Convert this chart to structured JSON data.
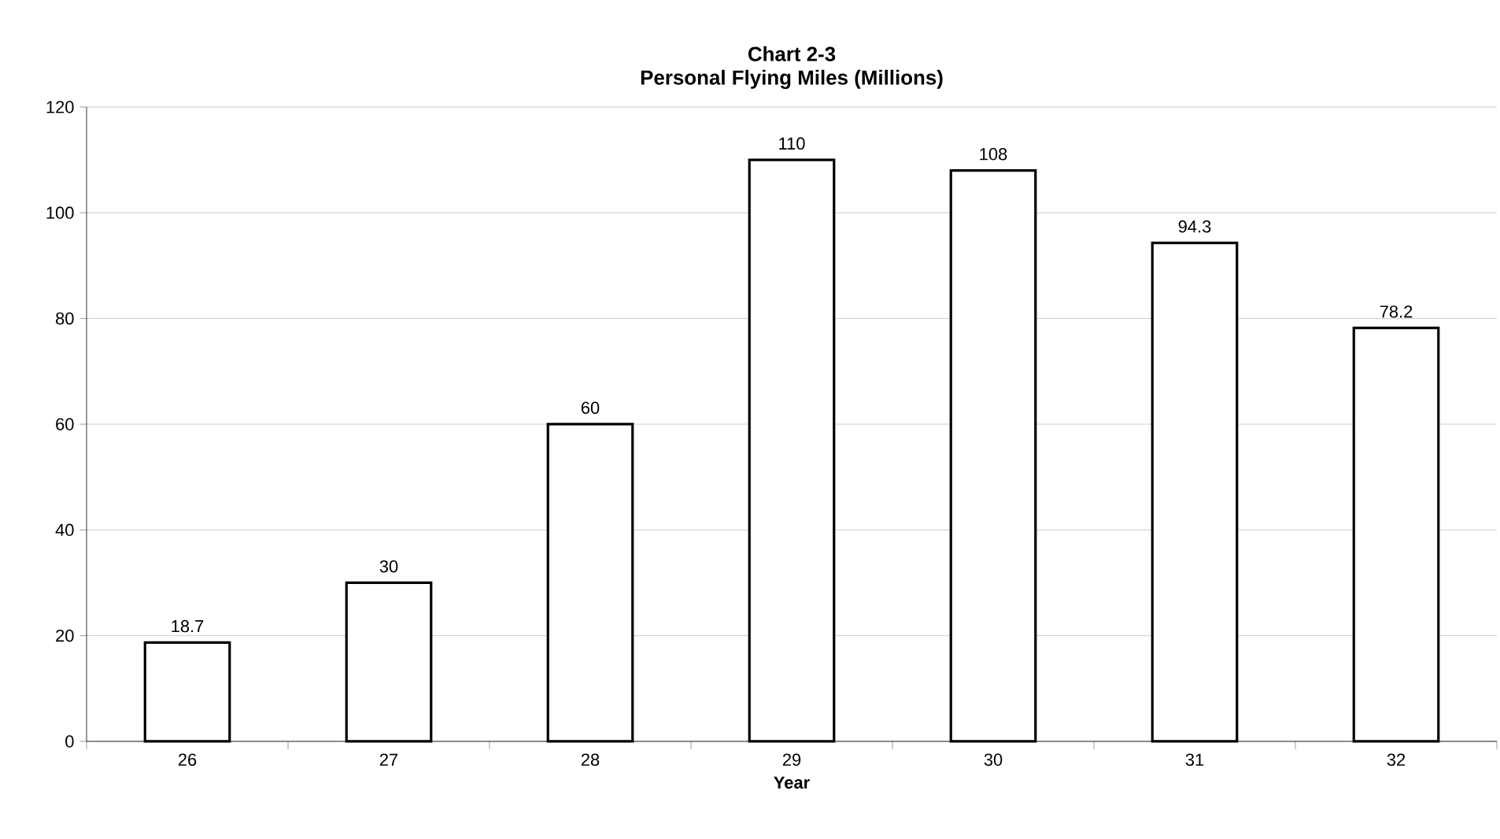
{
  "chart_data": {
    "type": "bar",
    "title": "Chart 2-3",
    "subtitle": "Personal Flying Miles (Millions)",
    "xlabel": "Year",
    "categories": [
      "26",
      "27",
      "28",
      "29",
      "30",
      "31",
      "32"
    ],
    "values": [
      18.7,
      30,
      60,
      110,
      108,
      94.3,
      78.2
    ],
    "color": "#ffffff",
    "ylim": [
      0,
      120
    ],
    "yticks": [
      0,
      20,
      40,
      60,
      80,
      100,
      120
    ],
    "grid": "y",
    "data_labels": true
  }
}
